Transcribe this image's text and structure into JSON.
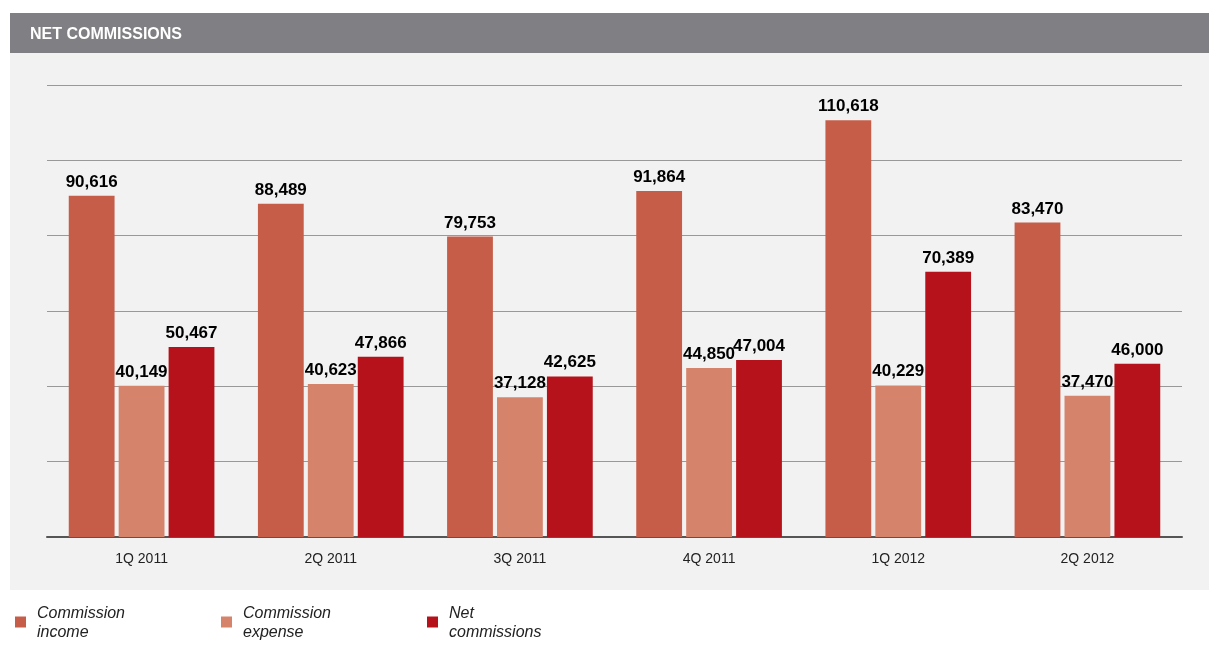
{
  "chart_data": {
    "type": "bar",
    "title": "NET COMMISSIONS",
    "categories": [
      "1Q 2011",
      "2Q 2011",
      "3Q 2011",
      "4Q 2011",
      "1Q 2012",
      "2Q 2012"
    ],
    "series": [
      {
        "name": "Commission income",
        "color": "#c65d48",
        "values": [
          90616,
          88489,
          79753,
          91864,
          110618,
          83470
        ],
        "value_labels": [
          "90,616",
          "88,489",
          "79,753",
          "91,864",
          "110,618",
          "83,470"
        ]
      },
      {
        "name": "Commission expense",
        "color": "#d6836c",
        "values": [
          40149,
          40623,
          37128,
          44850,
          40229,
          37470
        ],
        "value_labels": [
          "40,149",
          "40,623",
          "37,128",
          "44,850",
          "40,229",
          "37,470"
        ]
      },
      {
        "name": "Net commissions",
        "color": "#b5121b",
        "values": [
          50467,
          47866,
          42625,
          47004,
          70389,
          46000
        ],
        "value_labels": [
          "50,467",
          "47,866",
          "42,625",
          "47,004",
          "70,389",
          "46,000"
        ]
      }
    ],
    "tick_labels": "x",
    "grid": "y",
    "legend": "bottom left"
  }
}
